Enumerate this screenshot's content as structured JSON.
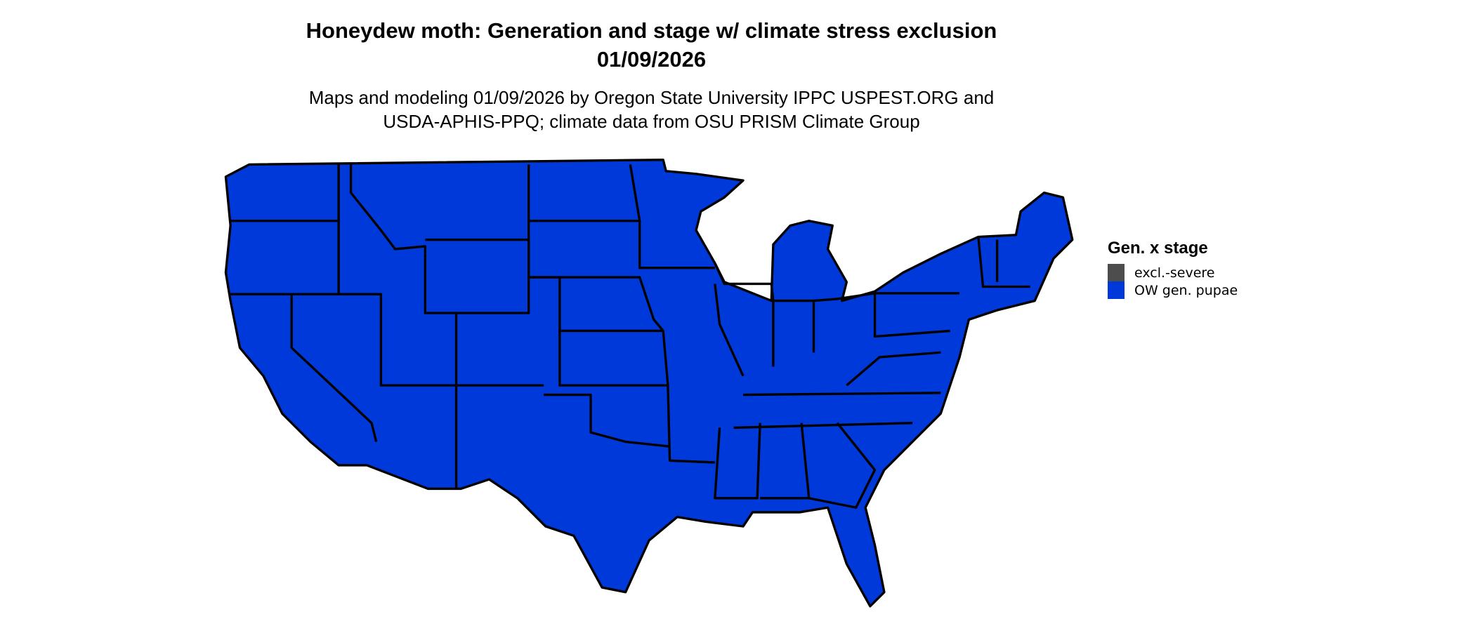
{
  "title": {
    "line1": "Honeydew moth: Generation and stage w/ climate stress exclusion",
    "line2": "01/09/2026"
  },
  "subtitle": {
    "line1": "Maps and modeling 01/09/2026 by Oregon State University IPPC USPEST.ORG and",
    "line2": "USDA-APHIS-PPQ; climate data from OSU PRISM Climate Group"
  },
  "map": {
    "region": "Contiguous United States",
    "fill_category": "OW gen. pupae",
    "fill_color": "#0039D9",
    "border_color": "#000000"
  },
  "legend": {
    "title": "Gen. x stage",
    "items": [
      {
        "label": "excl.-severe",
        "color": "#4D4D4D"
      },
      {
        "label": "OW gen. pupae",
        "color": "#0039D9"
      }
    ]
  }
}
